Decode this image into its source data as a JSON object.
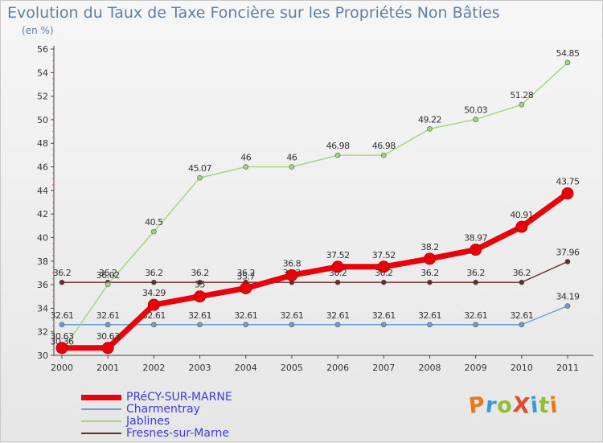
{
  "header": {
    "title": "Evolution du Taux de Taxe Foncière sur les Propriétés Non Bâties",
    "subtitle": "(en %)"
  },
  "logo": {
    "text": "ProXiti",
    "letter_colors": [
      "#e8781e",
      "#3a9ad9",
      "#8fbf2c",
      "#e24a2c",
      "#3a9ad9",
      "#8fbf2c",
      "#e8781e"
    ]
  },
  "chart_data": {
    "type": "line",
    "title": "Evolution du Taux de Taxe Foncière sur les Propriétés Non Bâties",
    "ylabel": "(en %)",
    "xlabel": "",
    "x": [
      2000,
      2001,
      2002,
      2003,
      2004,
      2005,
      2006,
      2007,
      2008,
      2009,
      2010,
      2011
    ],
    "ylim": [
      30,
      56
    ],
    "yticks": [
      30,
      32,
      34,
      36,
      38,
      40,
      42,
      44,
      46,
      48,
      50,
      52,
      54,
      56
    ],
    "grid": false,
    "legend_position": "bottom-left",
    "series": [
      {
        "name": "Charmentray",
        "color": "#6a9fd0",
        "width": 1.4,
        "values": [
          32.61,
          32.61,
          32.61,
          32.61,
          32.61,
          32.61,
          32.61,
          32.61,
          32.61,
          32.61,
          32.61,
          34.19
        ],
        "labels": [
          "32.61",
          "32.61",
          "32.61",
          "32.61",
          "32.61",
          "32.61",
          "32.61",
          "32.61",
          "32.61",
          "32.61",
          "32.61",
          "34.19"
        ]
      },
      {
        "name": "Fresnes-sur-Marne",
        "color": "#6b2a2a",
        "width": 1.4,
        "values": [
          36.2,
          36.2,
          36.2,
          36.2,
          36.2,
          36.2,
          36.2,
          36.2,
          36.2,
          36.2,
          36.2,
          37.96
        ],
        "labels": [
          "36.2",
          "36.2",
          "36.2",
          "36.2",
          "36.2",
          "36.2",
          "36.2",
          "36.2",
          "36.2",
          "36.2",
          "36.2",
          "37.96"
        ]
      },
      {
        "name": "Jablines",
        "color": "#9ed67a",
        "width": 1.4,
        "values": [
          30.36,
          36.02,
          40.5,
          45.07,
          46,
          46,
          46.98,
          46.98,
          49.22,
          50.03,
          51.28,
          54.85
        ],
        "labels": [
          "30.36",
          "36.02",
          "40.5",
          "45.07",
          "46",
          "46",
          "46.98",
          "46.98",
          "49.22",
          "50.03",
          "51.28",
          "54.85"
        ]
      },
      {
        "name": "PRéCY-SUR-MARNE",
        "color": "#e8000b",
        "width": 7,
        "values": [
          30.63,
          30.63,
          34.29,
          35,
          35.7,
          36.8,
          37.52,
          37.52,
          38.2,
          38.97,
          40.91,
          43.75
        ],
        "labels": [
          "30.63",
          "30.63",
          "34.29",
          "35",
          "35.7",
          "36.8",
          "37.52",
          "37.52",
          "38.2",
          "38.97",
          "40.91",
          "43.75"
        ]
      }
    ],
    "legend_order": [
      "PRéCY-SUR-MARNE",
      "Charmentray",
      "Jablines",
      "Fresnes-sur-Marne"
    ]
  }
}
